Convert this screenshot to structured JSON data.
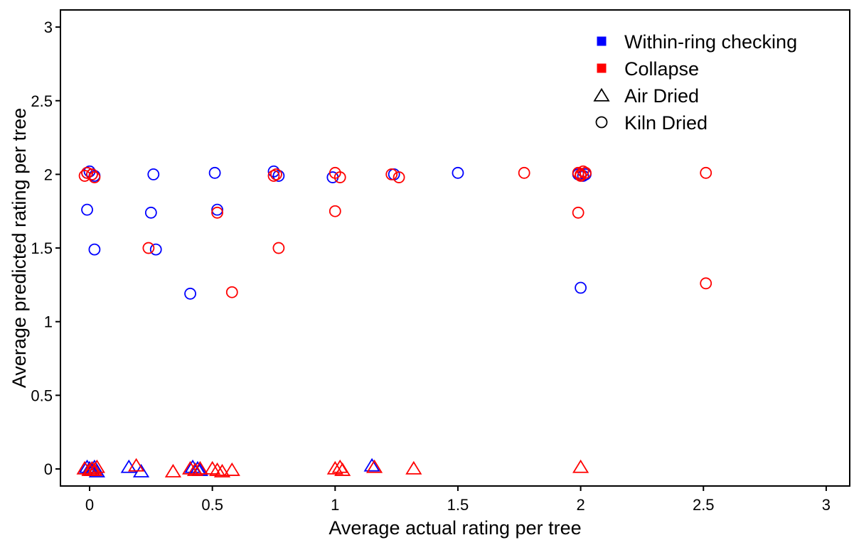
{
  "chart_data": {
    "type": "scatter",
    "xlabel": "Average actual rating per tree",
    "ylabel": "Average predicted rating per tree",
    "xlim": [
      -0.1,
      3.1
    ],
    "ylim": [
      -0.1,
      3.1
    ],
    "x_ticks": [
      0,
      0.5,
      1,
      1.5,
      2,
      2.5,
      3
    ],
    "x_tick_labels": [
      "0",
      "0.5",
      "1",
      "1.5",
      "2",
      "2.5",
      "3"
    ],
    "y_ticks": [
      0,
      0.5,
      1,
      1.5,
      2,
      2.5,
      3
    ],
    "y_tick_labels": [
      "0",
      "0.5",
      "1",
      "1.5",
      "2",
      "2.5",
      "3"
    ],
    "grid": false,
    "legend_position": "top-right",
    "legend": [
      {
        "label": "Within-ring checking",
        "marker": "square",
        "color": "#0000ff"
      },
      {
        "label": "Collapse",
        "marker": "square",
        "color": "#ff0000"
      },
      {
        "label": "Air Dried",
        "marker": "triangle",
        "color": "#000000"
      },
      {
        "label": "Kiln Dried",
        "marker": "circle",
        "color": "#000000"
      }
    ],
    "series": [
      {
        "name": "Within-ring checking",
        "color": "#0000ff",
        "kiln_dried": [
          [
            -0.01,
            2.01
          ],
          [
            0.0,
            2.02
          ],
          [
            0.01,
            2.0
          ],
          [
            0.02,
            1.99
          ],
          [
            -0.01,
            1.76
          ],
          [
            0.02,
            1.49
          ],
          [
            0.26,
            2.0
          ],
          [
            0.25,
            1.74
          ],
          [
            0.27,
            1.49
          ],
          [
            0.41,
            1.19
          ],
          [
            0.51,
            2.01
          ],
          [
            0.52,
            1.76
          ],
          [
            0.75,
            2.02
          ],
          [
            0.77,
            1.99
          ],
          [
            0.99,
            1.98
          ],
          [
            1.24,
            2.0
          ],
          [
            1.5,
            2.01
          ],
          [
            1.99,
            2.0
          ],
          [
            2.02,
            2.0
          ],
          [
            2.01,
            1.99
          ],
          [
            2.0,
            1.23
          ]
        ],
        "air_dried": [
          [
            -0.01,
            0.01
          ],
          [
            0.0,
            0.0
          ],
          [
            0.01,
            -0.01
          ],
          [
            0.02,
            0.01
          ],
          [
            0.03,
            -0.02
          ],
          [
            0.16,
            0.01
          ],
          [
            0.21,
            -0.02
          ],
          [
            0.42,
            0.01
          ],
          [
            0.44,
            0.0
          ],
          [
            0.45,
            -0.01
          ],
          [
            1.15,
            0.02
          ]
        ]
      },
      {
        "name": "Collapse",
        "color": "#ff0000",
        "kiln_dried": [
          [
            -0.02,
            1.99
          ],
          [
            -0.01,
            2.01
          ],
          [
            0.01,
            2.0
          ],
          [
            0.02,
            1.98
          ],
          [
            0.24,
            1.5
          ],
          [
            0.52,
            1.74
          ],
          [
            0.58,
            1.2
          ],
          [
            0.75,
            1.99
          ],
          [
            0.76,
            2.0
          ],
          [
            0.77,
            1.5
          ],
          [
            1.0,
            2.01
          ],
          [
            1.02,
            1.98
          ],
          [
            1.0,
            1.75
          ],
          [
            1.23,
            2.0
          ],
          [
            1.26,
            1.98
          ],
          [
            1.77,
            2.01
          ],
          [
            1.99,
            1.74
          ],
          [
            1.99,
            2.01
          ],
          [
            2.0,
            1.99
          ],
          [
            2.02,
            2.01
          ],
          [
            2.0,
            2.0
          ],
          [
            2.01,
            2.02
          ],
          [
            2.51,
            2.01
          ],
          [
            2.51,
            1.26
          ]
        ],
        "air_dried": [
          [
            -0.02,
            0.0
          ],
          [
            0.0,
            -0.01
          ],
          [
            0.01,
            0.0
          ],
          [
            0.02,
            -0.01
          ],
          [
            0.03,
            0.01
          ],
          [
            0.19,
            0.02
          ],
          [
            0.34,
            -0.02
          ],
          [
            0.41,
            0.0
          ],
          [
            0.43,
            -0.01
          ],
          [
            0.45,
            0.0
          ],
          [
            0.5,
            0.0
          ],
          [
            0.52,
            -0.01
          ],
          [
            0.54,
            -0.02
          ],
          [
            0.58,
            -0.01
          ],
          [
            1.0,
            0.0
          ],
          [
            1.02,
            0.01
          ],
          [
            1.03,
            -0.01
          ],
          [
            1.16,
            0.01
          ],
          [
            1.32,
            0.0
          ],
          [
            2.0,
            0.01
          ]
        ]
      }
    ]
  }
}
